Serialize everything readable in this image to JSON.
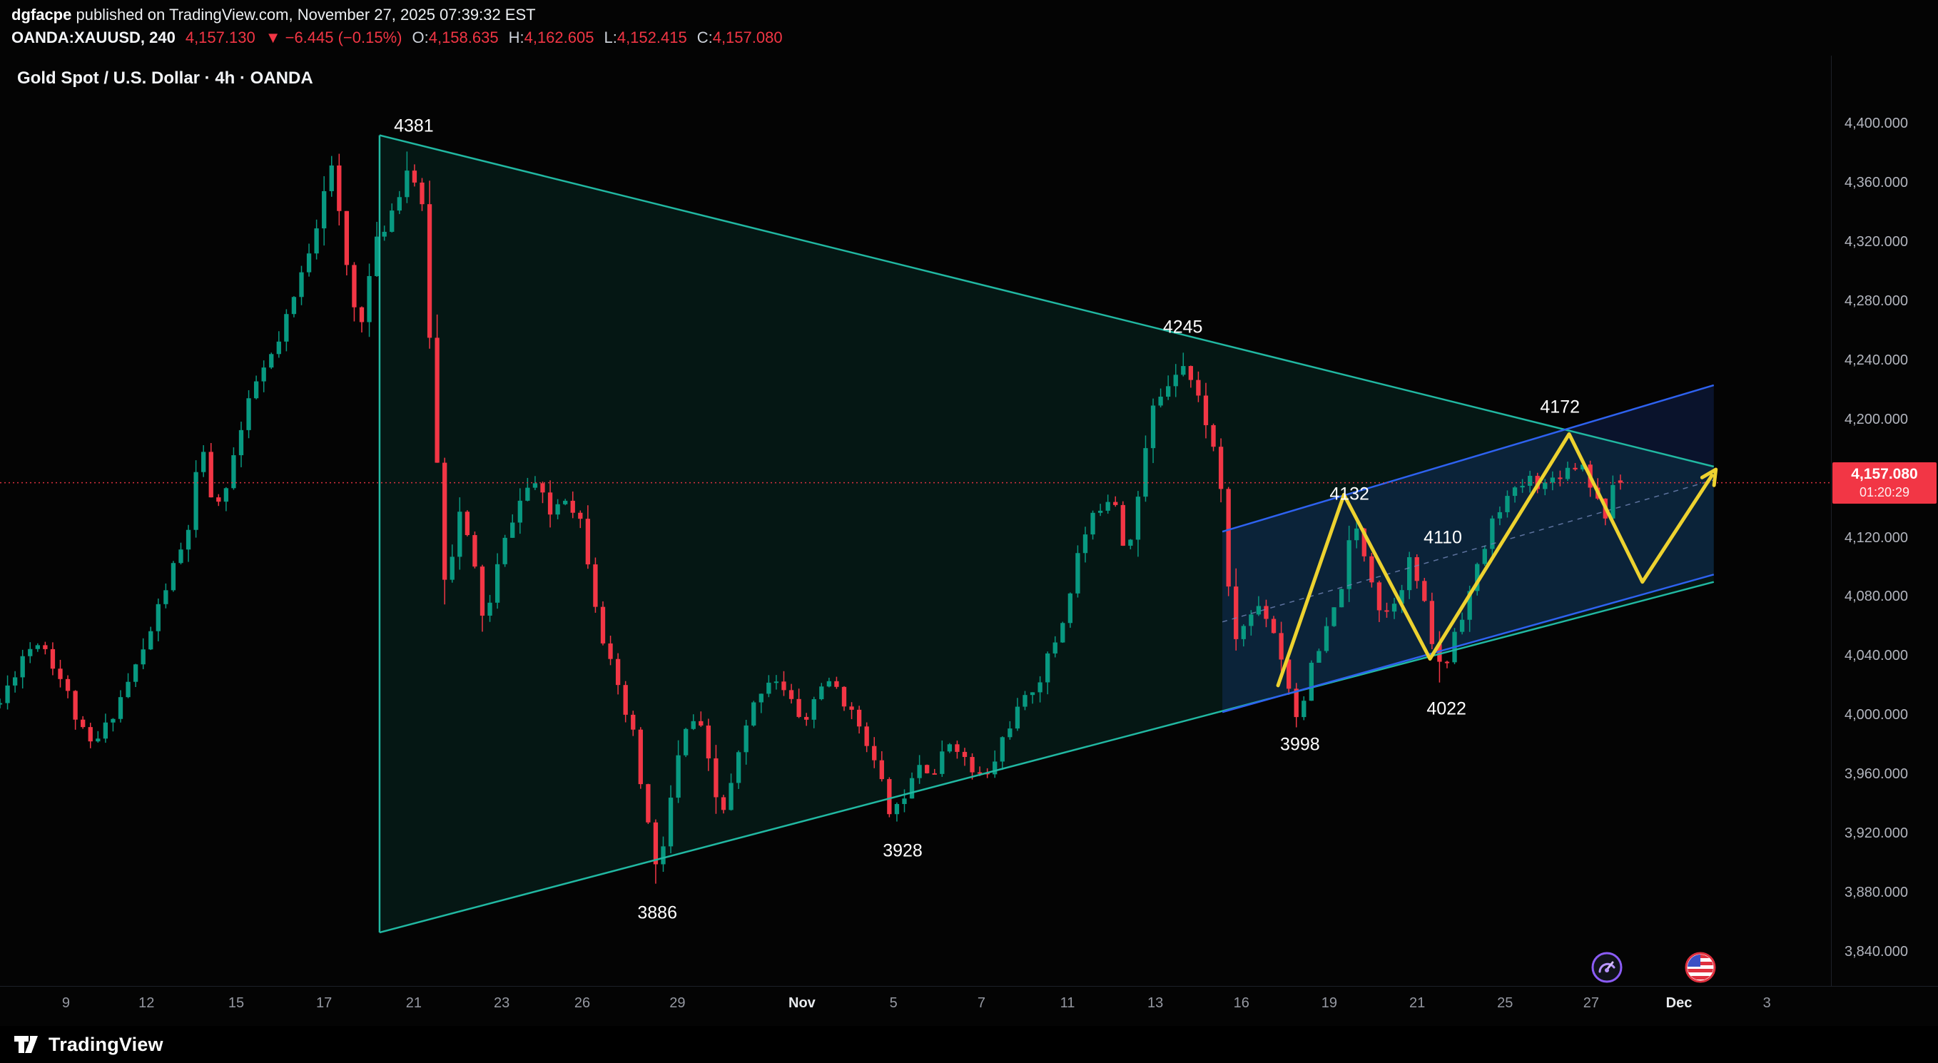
{
  "header": {
    "publisher": "dgfacpe",
    "published_suffix": " published on TradingView.com, November 27, 2025 07:39:32 EST",
    "symbol": "OANDA:XAUUSD, 240",
    "last_price": "4,157.130",
    "change": "▼ −6.445 (−0.15%)",
    "ohlc": [
      {
        "label": "O:",
        "value": "4,158.635"
      },
      {
        "label": "H:",
        "value": "4,162.605"
      },
      {
        "label": "L:",
        "value": "4,152.415"
      },
      {
        "label": "C:",
        "value": "4,157.080"
      }
    ]
  },
  "chart": {
    "title": "Gold Spot / U.S. Dollar · 4h · OANDA",
    "price_box": {
      "price": "4,157.080",
      "countdown": "01:20:29"
    }
  },
  "footer": {
    "brand": "TradingView"
  },
  "icons": {
    "button1": "purple-gauge-icon",
    "button2": "us-flag-icon",
    "logo": "tradingview-logo"
  },
  "colors": {
    "up": "#089981",
    "down": "#f23645",
    "price_line": "#f23645",
    "triangle_line": "#21b8a2",
    "triangle_fill": "rgba(18,153,129,0.13)",
    "channel_line": "#2e62f0",
    "channel_fill": "rgba(42,98,255,0.16)",
    "channel_mid": "#7286b8",
    "arrow": "#edd22f",
    "axis_text": "#b2b5be",
    "month_text": "#e8eaed"
  },
  "chart_data": {
    "type": "candlestick",
    "title": "Gold Spot / U.S. Dollar",
    "symbol": "OANDA:XAUUSD",
    "timeframe": "4h",
    "current_price": 4157.08,
    "price_axis": {
      "min": 3840,
      "max": 4400,
      "step": 40
    },
    "time_axis": {
      "labels": [
        {
          "label": "9",
          "f": 0.036,
          "month": false
        },
        {
          "label": "12",
          "f": 0.08,
          "month": false
        },
        {
          "label": "15",
          "f": 0.129,
          "month": false
        },
        {
          "label": "17",
          "f": 0.177,
          "month": false
        },
        {
          "label": "21",
          "f": 0.226,
          "month": false
        },
        {
          "label": "23",
          "f": 0.274,
          "month": false
        },
        {
          "label": "26",
          "f": 0.318,
          "month": false
        },
        {
          "label": "29",
          "f": 0.37,
          "month": false
        },
        {
          "label": "Nov",
          "f": 0.438,
          "month": true
        },
        {
          "label": "5",
          "f": 0.488,
          "month": false
        },
        {
          "label": "7",
          "f": 0.536,
          "month": false
        },
        {
          "label": "11",
          "f": 0.583,
          "month": false
        },
        {
          "label": "13",
          "f": 0.631,
          "month": false
        },
        {
          "label": "16",
          "f": 0.678,
          "month": false
        },
        {
          "label": "19",
          "f": 0.726,
          "month": false
        },
        {
          "label": "21",
          "f": 0.774,
          "month": false
        },
        {
          "label": "25",
          "f": 0.822,
          "month": false
        },
        {
          "label": "27",
          "f": 0.869,
          "month": false
        },
        {
          "label": "Dec",
          "f": 0.917,
          "month": true
        },
        {
          "label": "3",
          "f": 0.965,
          "month": false
        }
      ]
    },
    "candle_count": 216,
    "candles_end_frac": 0.885,
    "path_anchors": [
      [
        0.0,
        4008
      ],
      [
        0.012,
        4040
      ],
      [
        0.022,
        4052
      ],
      [
        0.035,
        4020
      ],
      [
        0.048,
        3978
      ],
      [
        0.055,
        3985
      ],
      [
        0.065,
        4010
      ],
      [
        0.079,
        4045
      ],
      [
        0.09,
        4085
      ],
      [
        0.102,
        4120
      ],
      [
        0.11,
        4180
      ],
      [
        0.118,
        4135
      ],
      [
        0.13,
        4185
      ],
      [
        0.14,
        4225
      ],
      [
        0.152,
        4250
      ],
      [
        0.163,
        4290
      ],
      [
        0.172,
        4330
      ],
      [
        0.18,
        4378
      ],
      [
        0.188,
        4310
      ],
      [
        0.196,
        4260
      ],
      [
        0.205,
        4315
      ],
      [
        0.215,
        4345
      ],
      [
        0.224,
        4375
      ],
      [
        0.232,
        4330
      ],
      [
        0.238,
        4180
      ],
      [
        0.244,
        4085
      ],
      [
        0.25,
        4140
      ],
      [
        0.258,
        4105
      ],
      [
        0.265,
        4060
      ],
      [
        0.272,
        4100
      ],
      [
        0.28,
        4135
      ],
      [
        0.291,
        4160
      ],
      [
        0.3,
        4135
      ],
      [
        0.308,
        4150
      ],
      [
        0.318,
        4130
      ],
      [
        0.328,
        4060
      ],
      [
        0.338,
        4010
      ],
      [
        0.345,
        3990
      ],
      [
        0.352,
        3940
      ],
      [
        0.359,
        3888
      ],
      [
        0.366,
        3940
      ],
      [
        0.373,
        3985
      ],
      [
        0.381,
        4000
      ],
      [
        0.39,
        3945
      ],
      [
        0.396,
        3935
      ],
      [
        0.405,
        3980
      ],
      [
        0.414,
        4015
      ],
      [
        0.422,
        4028
      ],
      [
        0.432,
        4008
      ],
      [
        0.44,
        3995
      ],
      [
        0.448,
        4022
      ],
      [
        0.458,
        4018
      ],
      [
        0.465,
        4000
      ],
      [
        0.472,
        3990
      ],
      [
        0.48,
        3955
      ],
      [
        0.488,
        3932
      ],
      [
        0.494,
        3948
      ],
      [
        0.5,
        3972
      ],
      [
        0.51,
        3960
      ],
      [
        0.52,
        3985
      ],
      [
        0.53,
        3962
      ],
      [
        0.54,
        3958
      ],
      [
        0.55,
        3992
      ],
      [
        0.56,
        4010
      ],
      [
        0.57,
        4030
      ],
      [
        0.58,
        4062
      ],
      [
        0.59,
        4115
      ],
      [
        0.6,
        4140
      ],
      [
        0.608,
        4152
      ],
      [
        0.615,
        4108
      ],
      [
        0.622,
        4150
      ],
      [
        0.63,
        4208
      ],
      [
        0.638,
        4225
      ],
      [
        0.645,
        4242
      ],
      [
        0.652,
        4222
      ],
      [
        0.66,
        4195
      ],
      [
        0.667,
        4155
      ],
      [
        0.672,
        4048
      ],
      [
        0.68,
        4062
      ],
      [
        0.688,
        4075
      ],
      [
        0.695,
        4060
      ],
      [
        0.702,
        4030
      ],
      [
        0.708,
        4000
      ],
      [
        0.715,
        4025
      ],
      [
        0.722,
        4048
      ],
      [
        0.73,
        4075
      ],
      [
        0.74,
        4128
      ],
      [
        0.748,
        4100
      ],
      [
        0.755,
        4065
      ],
      [
        0.762,
        4080
      ],
      [
        0.771,
        4106
      ],
      [
        0.78,
        4060
      ],
      [
        0.788,
        4025
      ],
      [
        0.795,
        4060
      ],
      [
        0.802,
        4080
      ],
      [
        0.81,
        4110
      ],
      [
        0.818,
        4140
      ],
      [
        0.827,
        4150
      ],
      [
        0.835,
        4160
      ],
      [
        0.843,
        4155
      ],
      [
        0.85,
        4162
      ],
      [
        0.858,
        4168
      ],
      [
        0.865,
        4170
      ],
      [
        0.871,
        4150
      ],
      [
        0.876,
        4134
      ],
      [
        0.881,
        4150
      ],
      [
        0.885,
        4157
      ]
    ],
    "pins": [
      {
        "f": 0.18,
        "side": "high",
        "p": 4378
      },
      {
        "f": 0.224,
        "side": "high",
        "p": 4381
      },
      {
        "f": 0.359,
        "side": "low",
        "p": 3886
      },
      {
        "f": 0.49,
        "side": "low",
        "p": 3928
      },
      {
        "f": 0.645,
        "side": "high",
        "p": 4245
      },
      {
        "f": 0.708,
        "side": "low",
        "p": 3998
      },
      {
        "f": 0.74,
        "side": "high",
        "p": 4132
      },
      {
        "f": 0.771,
        "side": "high",
        "p": 4110
      },
      {
        "f": 0.788,
        "side": "low",
        "p": 4022
      },
      {
        "f": 0.865,
        "side": "high",
        "p": 4172
      }
    ],
    "last_candle": {
      "o": 4158.635,
      "h": 4162.605,
      "l": 4152.415,
      "c": 4157.08
    },
    "annotations": [
      {
        "text": "4381",
        "f": 0.226,
        "p": 4398
      },
      {
        "text": "4245",
        "f": 0.646,
        "p": 4262
      },
      {
        "text": "4172",
        "f": 0.852,
        "p": 4208
      },
      {
        "text": "4132",
        "f": 0.737,
        "p": 4149
      },
      {
        "text": "4110",
        "f": 0.788,
        "p": 4120
      },
      {
        "text": "4022",
        "f": 0.79,
        "p": 4004
      },
      {
        "text": "3998",
        "f": 0.71,
        "p": 3980
      },
      {
        "text": "3928",
        "f": 0.493,
        "p": 3908
      },
      {
        "text": "3886",
        "f": 0.359,
        "p": 3866
      }
    ],
    "drawings": {
      "triangle": {
        "left_f": 0.2073,
        "right_f": 0.936,
        "top_p0": 4392,
        "top_p1": 4168,
        "bot_p0": 3853,
        "bot_p1": 4090
      },
      "channel": {
        "left_f": 0.6676,
        "right_f": 0.936,
        "top_p0": 4124,
        "top_p1": 4223,
        "bot_p0": 4002,
        "bot_p1": 4095
      },
      "arrow": {
        "points": [
          [
            0.698,
            4020
          ],
          [
            0.734,
            4149
          ],
          [
            0.781,
            4038
          ],
          [
            0.857,
            4190
          ],
          [
            0.897,
            4090
          ],
          [
            0.935,
            4162
          ]
        ]
      }
    }
  }
}
